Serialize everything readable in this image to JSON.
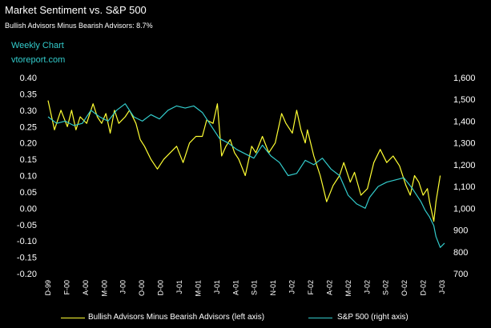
{
  "chart_data": {
    "type": "line",
    "title": "Market Sentiment vs. S&P 500",
    "subtitle_label": "Bullish Advisors Minus Bearish Advisors:",
    "subtitle_value": "8.7%",
    "chart_type_label": "Weekly Chart",
    "source": "vtoreport.com",
    "colors": {
      "bullish": "#ffff33",
      "sp500": "#33cccc",
      "background": "#000000"
    },
    "left_axis": {
      "ylim": [
        -0.2,
        0.4
      ],
      "ticks": [
        "0.40",
        "0.35",
        "0.30",
        "0.25",
        "0.20",
        "0.15",
        "0.10",
        "0.05",
        "0.00",
        "-0.05",
        "-0.10",
        "-0.15",
        "-0.20"
      ]
    },
    "right_axis": {
      "ylim": [
        700,
        1600
      ],
      "ticks": [
        "1,600",
        "1,500",
        "1,400",
        "1,300",
        "1,200",
        "1,100",
        "1,000",
        "900",
        "800",
        "700"
      ]
    },
    "x_ticks": [
      "D-99",
      "F-00",
      "A-00",
      "M-00",
      "J-00",
      "O-00",
      "D-00",
      "J-01",
      "M-01",
      "J-01",
      "A-01",
      "S-01",
      "N-01",
      "J-02",
      "F-02",
      "A-02",
      "M-02",
      "J-02",
      "S-02",
      "O-02",
      "D-02",
      "J-03"
    ],
    "n_weeks": 186,
    "series": [
      {
        "name": "Bullish Advisors Minus Bearish Advisors",
        "legend": "Bullish Advisors Minus Bearish Advisors (left axis)",
        "axis": "left",
        "points": [
          [
            0,
            0.33
          ],
          [
            3,
            0.24
          ],
          [
            6,
            0.3
          ],
          [
            9,
            0.25
          ],
          [
            11,
            0.3
          ],
          [
            13,
            0.24
          ],
          [
            15,
            0.28
          ],
          [
            18,
            0.26
          ],
          [
            21,
            0.32
          ],
          [
            23,
            0.28
          ],
          [
            25,
            0.26
          ],
          [
            27,
            0.29
          ],
          [
            29,
            0.23
          ],
          [
            31,
            0.3
          ],
          [
            33,
            0.26
          ],
          [
            36,
            0.28
          ],
          [
            38,
            0.3
          ],
          [
            41,
            0.26
          ],
          [
            43,
            0.21
          ],
          [
            45,
            0.19
          ],
          [
            48,
            0.15
          ],
          [
            51,
            0.12
          ],
          [
            54,
            0.15
          ],
          [
            57,
            0.17
          ],
          [
            60,
            0.19
          ],
          [
            63,
            0.14
          ],
          [
            66,
            0.2
          ],
          [
            69,
            0.22
          ],
          [
            72,
            0.22
          ],
          [
            74,
            0.27
          ],
          [
            77,
            0.26
          ],
          [
            79,
            0.32
          ],
          [
            81,
            0.16
          ],
          [
            83,
            0.19
          ],
          [
            85,
            0.21
          ],
          [
            87,
            0.17
          ],
          [
            89,
            0.15
          ],
          [
            92,
            0.1
          ],
          [
            95,
            0.19
          ],
          [
            97,
            0.17
          ],
          [
            100,
            0.22
          ],
          [
            103,
            0.17
          ],
          [
            106,
            0.2
          ],
          [
            109,
            0.29
          ],
          [
            111,
            0.26
          ],
          [
            114,
            0.23
          ],
          [
            116,
            0.3
          ],
          [
            118,
            0.24
          ],
          [
            120,
            0.2
          ],
          [
            121,
            0.24
          ],
          [
            124,
            0.16
          ],
          [
            127,
            0.1
          ],
          [
            130,
            0.02
          ],
          [
            133,
            0.07
          ],
          [
            136,
            0.1
          ],
          [
            138,
            0.14
          ],
          [
            141,
            0.08
          ],
          [
            143,
            0.11
          ],
          [
            146,
            0.04
          ],
          [
            149,
            0.06
          ],
          [
            152,
            0.14
          ],
          [
            155,
            0.18
          ],
          [
            158,
            0.14
          ],
          [
            161,
            0.16
          ],
          [
            164,
            0.13
          ],
          [
            167,
            0.07
          ],
          [
            169,
            0.04
          ],
          [
            171,
            0.1
          ],
          [
            173,
            0.08
          ],
          [
            175,
            0.04
          ],
          [
            177,
            0.06
          ],
          [
            178,
            0.02
          ],
          [
            180,
            -0.04
          ],
          [
            181,
            0.02
          ],
          [
            183,
            0.1
          ]
        ]
      },
      {
        "name": "S&P 500",
        "legend": "S&P 500 (right axis)",
        "axis": "right",
        "points": [
          [
            0,
            1420
          ],
          [
            4,
            1390
          ],
          [
            8,
            1400
          ],
          [
            12,
            1380
          ],
          [
            16,
            1390
          ],
          [
            20,
            1450
          ],
          [
            24,
            1420
          ],
          [
            28,
            1400
          ],
          [
            32,
            1450
          ],
          [
            36,
            1480
          ],
          [
            40,
            1420
          ],
          [
            44,
            1400
          ],
          [
            48,
            1430
          ],
          [
            52,
            1410
          ],
          [
            56,
            1450
          ],
          [
            60,
            1470
          ],
          [
            64,
            1460
          ],
          [
            68,
            1470
          ],
          [
            72,
            1440
          ],
          [
            76,
            1380
          ],
          [
            80,
            1320
          ],
          [
            84,
            1300
          ],
          [
            88,
            1270
          ],
          [
            92,
            1250
          ],
          [
            96,
            1230
          ],
          [
            100,
            1290
          ],
          [
            104,
            1240
          ],
          [
            108,
            1210
          ],
          [
            112,
            1150
          ],
          [
            116,
            1160
          ],
          [
            120,
            1220
          ],
          [
            124,
            1200
          ],
          [
            128,
            1230
          ],
          [
            132,
            1180
          ],
          [
            136,
            1150
          ],
          [
            140,
            1060
          ],
          [
            144,
            1020
          ],
          [
            148,
            1000
          ],
          [
            150,
            1050
          ],
          [
            154,
            1100
          ],
          [
            158,
            1120
          ],
          [
            162,
            1130
          ],
          [
            166,
            1140
          ],
          [
            170,
            1090
          ],
          [
            174,
            1030
          ],
          [
            176,
            990
          ],
          [
            178,
            960
          ],
          [
            180,
            920
          ],
          [
            181,
            870
          ],
          [
            183,
            820
          ],
          [
            185,
            840
          ]
        ]
      }
    ]
  }
}
